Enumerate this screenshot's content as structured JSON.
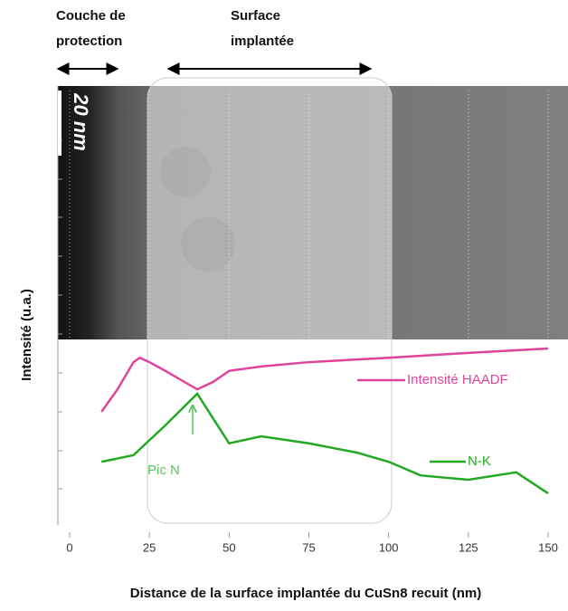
{
  "chart_data": {
    "type": "line",
    "header_left": [
      "Couche de",
      "protection"
    ],
    "header_right": [
      "Surface",
      "implantée"
    ],
    "scale_bar": "20 nm",
    "annotation": "Pic N",
    "xlabel": "Distance de la surface implantée du CuSn8 recuit (nm)",
    "ylabel": "Intensité (u.a.)",
    "xlim": [
      0,
      150
    ],
    "xticks": [
      0,
      25,
      50,
      75,
      100,
      125,
      150
    ],
    "ylim": [
      0,
      100
    ],
    "grid": true,
    "series": [
      {
        "name": "Intensité HAADF",
        "color": "#e0449a",
        "x": [
          10,
          15,
          20,
          22,
          25,
          30,
          35,
          40,
          45,
          50,
          60,
          75,
          100,
          125,
          150
        ],
        "values": [
          25.8,
          30.9,
          37.1,
          38.1,
          37.1,
          35.1,
          33.0,
          30.9,
          32.6,
          35.1,
          36.1,
          37.1,
          38.1,
          39.2,
          40.2
        ]
      },
      {
        "name": "N-K",
        "color": "#22a822",
        "x": [
          10,
          20,
          30,
          40,
          50,
          60,
          75,
          90,
          100,
          110,
          125,
          140,
          150
        ],
        "values": [
          14.4,
          15.9,
          22.7,
          29.9,
          18.6,
          20.2,
          18.6,
          16.5,
          14.4,
          11.3,
          10.3,
          12.0,
          7.2
        ]
      }
    ]
  }
}
